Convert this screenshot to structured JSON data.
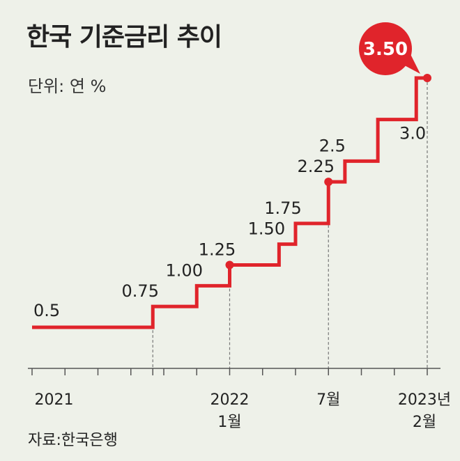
{
  "title": "한국 기준금리 추이",
  "unit": "단위: 연 %",
  "source": "자료:한국은행",
  "colors": {
    "line": "#e0242b",
    "background": "#eef1e9",
    "text": "#222222"
  },
  "chart_data": {
    "type": "line",
    "step": true,
    "ylim": [
      0,
      3.8
    ],
    "points": [
      {
        "x": 0.0,
        "y": 0.5,
        "label": "0.5"
      },
      {
        "x": 11.0,
        "y": 0.75,
        "label": "0.75"
      },
      {
        "x": 15.0,
        "y": 1.0,
        "label": "1.00"
      },
      {
        "x": 18.0,
        "y": 1.25,
        "label": "1.25"
      },
      {
        "x": 22.5,
        "y": 1.5,
        "label": "1.50"
      },
      {
        "x": 24.0,
        "y": 1.75,
        "label": "1.75"
      },
      {
        "x": 27.0,
        "y": 2.25,
        "label": "2.25"
      },
      {
        "x": 28.5,
        "y": 2.5,
        "label": "2.5"
      },
      {
        "x": 31.5,
        "y": 3.0,
        "label": "3.0"
      },
      {
        "x": 35.0,
        "y": 3.5,
        "label": "3.50"
      }
    ],
    "x_end": 36.0,
    "ticks": [
      0,
      3,
      6,
      9,
      11,
      12,
      15,
      18,
      21,
      24,
      27,
      30,
      33,
      36
    ],
    "guides": [
      11,
      18,
      27,
      36
    ],
    "markers": [
      18,
      27,
      36
    ],
    "x_labels": [
      {
        "x": 2,
        "text": "2021"
      },
      {
        "x": 18,
        "text": "2022"
      },
      {
        "x": 18,
        "text": "1월"
      },
      {
        "x": 27,
        "text": "7월"
      },
      {
        "x": 36,
        "text": "2023년"
      },
      {
        "x": 36,
        "text": "2월"
      }
    ],
    "highlight": {
      "value": "3.50"
    }
  }
}
